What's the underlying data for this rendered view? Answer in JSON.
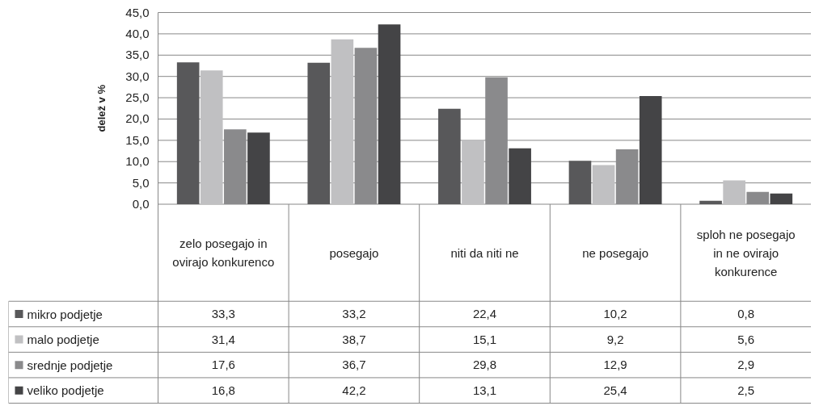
{
  "chart_data": {
    "type": "bar",
    "ylabel": "delež v %",
    "categories": [
      "zelo posegajo in ovirajo konkurenco",
      "posegajo",
      "niti da niti ne",
      "ne posegajo",
      "sploh ne posegajo in ne ovirajo konkurence"
    ],
    "series": [
      {
        "name": "mikro podjetje",
        "color": "#58585a",
        "values": [
          33.3,
          33.2,
          22.4,
          10.2,
          0.8
        ],
        "value_labels": [
          "33,3",
          "33,2",
          "22,4",
          "10,2",
          "0,8"
        ]
      },
      {
        "name": "malo podjetje",
        "color": "#c0c0c2",
        "values": [
          31.4,
          38.7,
          15.1,
          9.2,
          5.6
        ],
        "value_labels": [
          "31,4",
          "38,7",
          "15,1",
          "9,2",
          "5,6"
        ]
      },
      {
        "name": "srednje podjetje",
        "color": "#8a8a8c",
        "values": [
          17.6,
          36.7,
          29.8,
          12.9,
          2.9
        ],
        "value_labels": [
          "17,6",
          "36,7",
          "29,8",
          "12,9",
          "2,9"
        ]
      },
      {
        "name": "veliko podjetje",
        "color": "#444446",
        "values": [
          16.8,
          42.2,
          13.1,
          25.4,
          2.5
        ],
        "value_labels": [
          "16,8",
          "42,2",
          "13,1",
          "25,4",
          "2,5"
        ]
      }
    ],
    "ylim": [
      0,
      45
    ],
    "yticks": [
      {
        "value": 0,
        "label": "0,0"
      },
      {
        "value": 5,
        "label": "5,0"
      },
      {
        "value": 10,
        "label": "10,0"
      },
      {
        "value": 15,
        "label": "15,0"
      },
      {
        "value": 20,
        "label": "20,0"
      },
      {
        "value": 25,
        "label": "25,0"
      },
      {
        "value": 30,
        "label": "30,0"
      },
      {
        "value": 35,
        "label": "35,0"
      },
      {
        "value": 40,
        "label": "40,0"
      },
      {
        "value": 45,
        "label": "45,0"
      }
    ],
    "grid": "y",
    "legend": "bottom left"
  }
}
